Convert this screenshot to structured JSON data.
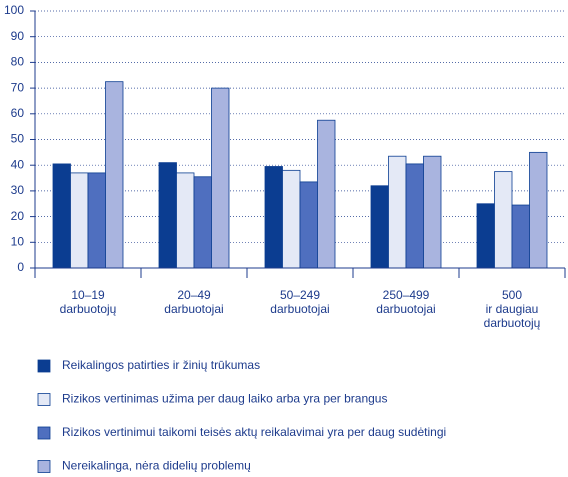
{
  "chart_data": {
    "type": "bar",
    "categories": [
      [
        "10–19",
        "darbuotojų"
      ],
      [
        "20–49",
        "darbuotojai"
      ],
      [
        "50–249",
        "darbuotojai"
      ],
      [
        "250–499",
        "darbuotojai"
      ],
      [
        "500",
        "ir daugiau",
        "darbuotojų"
      ]
    ],
    "series": [
      {
        "name": "Reikalingos patirties ir žinių trūkumas",
        "color": "#0b3d91",
        "values": [
          40.5,
          41,
          39.5,
          32,
          25
        ]
      },
      {
        "name": "Rizikos vertinimas užima per daug laiko arba yra per brangus",
        "color": "#e4e9f6",
        "values": [
          37,
          37,
          38,
          43.5,
          37.5
        ]
      },
      {
        "name": "Rizikos vertinimui taikomi teisės aktų reikalavimai yra per daug sudėtingi",
        "color": "#4f6fbf",
        "values": [
          37,
          35.5,
          33.5,
          40.5,
          24.5
        ]
      },
      {
        "name": "Nereikalinga, nėra didelių problemų",
        "color": "#a9b4df",
        "values": [
          72.5,
          70,
          57.5,
          43.5,
          45
        ]
      }
    ],
    "ylim": [
      0,
      100
    ],
    "yticks": [
      0,
      10,
      20,
      30,
      40,
      50,
      60,
      70,
      80,
      90,
      100
    ],
    "grid": true
  }
}
